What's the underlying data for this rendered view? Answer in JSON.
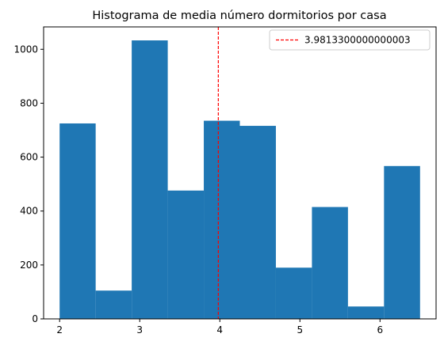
{
  "chart_data": {
    "type": "bar",
    "title": "Histograma de media número dormitorios por casa",
    "xlabel": "",
    "ylabel": "",
    "bins": [
      {
        "start": 2.0,
        "end": 2.45,
        "count": 725
      },
      {
        "start": 2.45,
        "end": 2.9,
        "count": 105
      },
      {
        "start": 2.9,
        "end": 3.35,
        "count": 1033
      },
      {
        "start": 3.35,
        "end": 3.8,
        "count": 476
      },
      {
        "start": 3.8,
        "end": 4.25,
        "count": 735
      },
      {
        "start": 4.25,
        "end": 4.7,
        "count": 716
      },
      {
        "start": 4.7,
        "end": 5.15,
        "count": 190
      },
      {
        "start": 5.15,
        "end": 5.6,
        "count": 415
      },
      {
        "start": 5.6,
        "end": 6.05,
        "count": 46
      },
      {
        "start": 6.05,
        "end": 6.5,
        "count": 567
      }
    ],
    "xlim": [
      1.8,
      6.7
    ],
    "ylim": [
      0,
      1083
    ],
    "xticks": [
      "2",
      "3",
      "4",
      "5",
      "6"
    ],
    "yticks": [
      "0",
      "200",
      "400",
      "600",
      "800",
      "1000"
    ],
    "mean_line": {
      "value": 3.9813300000000003,
      "label": "3.9813300000000003",
      "color": "#ff0000",
      "style": "dashed"
    },
    "bar_color": "#1f77b4",
    "grid": false,
    "legend": {
      "placement": "top-right",
      "entries": [
        "3.9813300000000003"
      ]
    }
  }
}
